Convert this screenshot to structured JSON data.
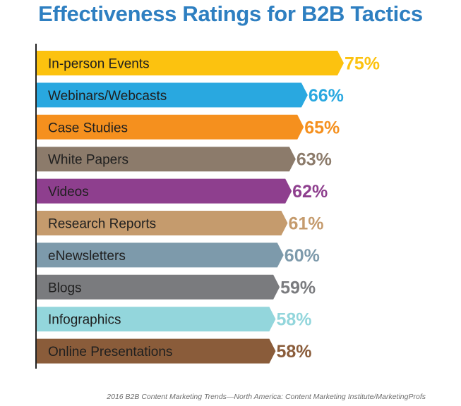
{
  "chart_data": {
    "type": "bar",
    "orientation": "horizontal",
    "title": "Effectiveness Ratings for B2B Tactics",
    "categories": [
      "In-person Events",
      "Webinars/Webcasts",
      "Case Studies",
      "White Papers",
      "Videos",
      "Research Reports",
      "eNewsletters",
      "Blogs",
      "Infographics",
      "Online Presentations"
    ],
    "values": [
      75,
      66,
      65,
      63,
      62,
      61,
      60,
      59,
      58,
      58
    ],
    "value_labels": [
      "75%",
      "66%",
      "65%",
      "63%",
      "62%",
      "61%",
      "60%",
      "59%",
      "58%",
      "58%"
    ],
    "colors": [
      "#fcc20f",
      "#29a8e0",
      "#f5901e",
      "#8c7b6b",
      "#8e3f8e",
      "#c59b6d",
      "#7d9aab",
      "#7a7b7e",
      "#93d6dc",
      "#8a5c3a"
    ],
    "value_label_colors": [
      "#fcc20f",
      "#29a8e0",
      "#f5901e",
      "#8c7b6b",
      "#8e3f8e",
      "#c59b6d",
      "#7d9aab",
      "#7a7b7e",
      "#93d6dc",
      "#8a5c3a"
    ],
    "xlim": [
      0,
      75
    ],
    "grid": false,
    "legend": "none"
  },
  "source": "2016 B2B Content Marketing Trends—North America: Content Marketing Institute/MarketingProfs"
}
